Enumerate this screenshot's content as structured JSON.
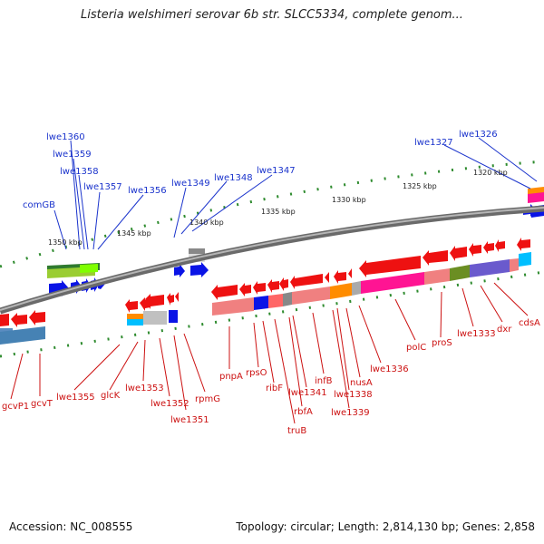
{
  "title": "Listeria welshimeri serovar 6b str. SLCC5334, complete genom...",
  "accession": "Accession: NC_008555",
  "summary": "Topology: circular; Length: 2,814,130 bp; Genes: 2,858",
  "scale_labels": [
    "1350 kbp",
    "1345 kbp",
    "1340 kbp",
    "1335 kbp",
    "1330 kbp",
    "1325 kbp",
    "1320 kbp"
  ],
  "forward_genes": [
    "lwe1360",
    "lwe1359",
    "lwe1358",
    "lwe1357",
    "lwe1356",
    "comGB",
    "lwe1349",
    "lwe1348",
    "lwe1347",
    "lwe1327",
    "lwe1326"
  ],
  "reverse_genes": [
    "gcvP1",
    "gcvT",
    "lwe1355",
    "glcK",
    "lwe1353",
    "lwe1352",
    "lwe1351",
    "rpmG",
    "pnpA",
    "rpsO",
    "ribF",
    "truB",
    "rbfA",
    "lwe1341",
    "infB",
    "lwe1339",
    "lwe1338",
    "nusA",
    "lwe1336",
    "polC",
    "proS",
    "lwe1333",
    "dxr",
    "cdsA"
  ],
  "colors": {
    "forward": "#0a14e6",
    "reverse": "#ee1111",
    "backbone": "#7a7a7a",
    "tick": "#2e8b2e"
  }
}
